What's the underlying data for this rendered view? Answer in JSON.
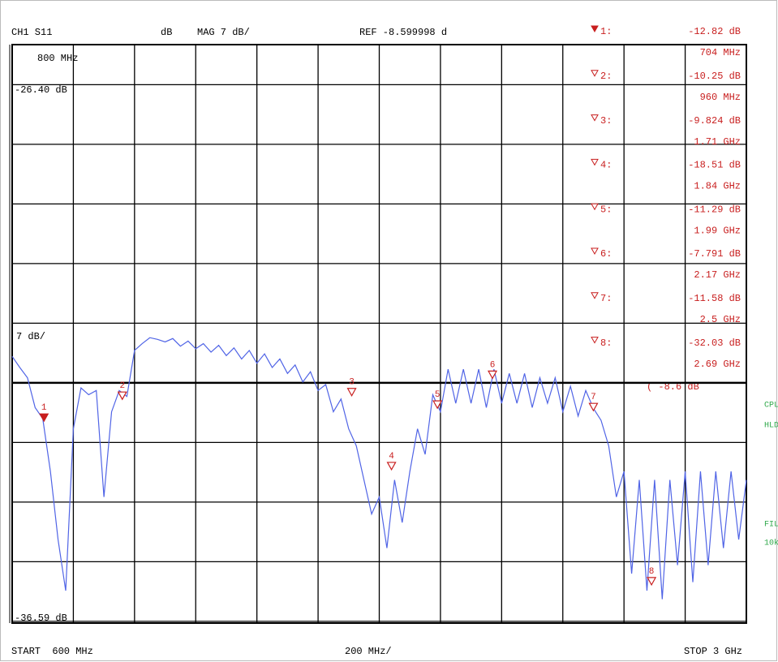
{
  "chart_data": {
    "type": "line",
    "header": {
      "channel": "CH1 S11",
      "format": "dB",
      "scale": "MAG 7 dB/",
      "ref": "REF -8.599998 d"
    },
    "annotations": {
      "top_freq": "800 MHz",
      "top_level": "-26.40 dB",
      "scale_label": "7 dB/",
      "bottom_level": "-36.59 dB",
      "ref_echo": "( -8.6 dB"
    },
    "footer": {
      "start": "START  600 MHz",
      "span": "200 MHz/",
      "stop": "STOP 3 GHz"
    },
    "side": [
      "CPL",
      "HLD",
      "FIL",
      "10k"
    ],
    "ref_value": -8.599998,
    "ydiv": 7,
    "xdiv": 200,
    "xlim": [
      600,
      3000
    ],
    "ylim": [
      -36.8,
      31.1
    ],
    "x": [
      600,
      625,
      650,
      675,
      700,
      725,
      750,
      775,
      800,
      825,
      850,
      875,
      900,
      925,
      950,
      975,
      1000,
      1025,
      1050,
      1075,
      1100,
      1125,
      1150,
      1175,
      1200,
      1225,
      1250,
      1275,
      1300,
      1325,
      1350,
      1375,
      1400,
      1425,
      1450,
      1475,
      1500,
      1525,
      1550,
      1575,
      1600,
      1625,
      1650,
      1675,
      1700,
      1725,
      1750,
      1775,
      1800,
      1825,
      1850,
      1875,
      1900,
      1925,
      1950,
      1975,
      2000,
      2025,
      2050,
      2075,
      2100,
      2125,
      2150,
      2175,
      2200,
      2225,
      2250,
      2275,
      2300,
      2325,
      2350,
      2375,
      2400,
      2425,
      2450,
      2475,
      2500,
      2525,
      2550,
      2575,
      2600,
      2625,
      2650,
      2675,
      2700,
      2725,
      2750,
      2775,
      2800,
      2825,
      2850,
      2875,
      2900,
      2925,
      2950,
      2975,
      3000
    ],
    "series": [
      {
        "color": "#5064e6",
        "values": [
          -5.5,
          -6.8,
          -8.0,
          -11.5,
          -12.8,
          -19,
          -27,
          -33,
          -14,
          -9.2,
          -10,
          -9.5,
          -22,
          -12,
          -9.5,
          -10.2,
          -4.8,
          -4.0,
          -3.3,
          -3.5,
          -3.8,
          -3.4,
          -4.3,
          -3.7,
          -4.6,
          -4.0,
          -5.0,
          -4.2,
          -5.4,
          -4.5,
          -5.8,
          -4.8,
          -6.3,
          -5.2,
          -6.8,
          -5.8,
          -7.5,
          -6.5,
          -8.5,
          -7.3,
          -9.5,
          -8.8,
          -12,
          -10.5,
          -14,
          -16,
          -20,
          -24,
          -22,
          -28,
          -20,
          -25,
          -19,
          -14,
          -17,
          -10,
          -12,
          -7,
          -11,
          -7,
          -11,
          -7,
          -11.5,
          -7,
          -11,
          -7.5,
          -11,
          -7.5,
          -11.5,
          -8,
          -11,
          -8,
          -12,
          -9,
          -12.5,
          -9.5,
          -11.6,
          -13,
          -16,
          -22,
          -19,
          -31,
          -20,
          -33,
          -20,
          -34,
          -20,
          -30,
          -19,
          -32,
          -19,
          -30,
          -19,
          -28,
          -19,
          -27,
          -20
        ]
      }
    ],
    "marker_color": "#c81e1e",
    "markers": [
      {
        "label": "1:",
        "plot_label": "1",
        "active": true,
        "value": -12.82,
        "value_label": "-12.82 dB",
        "freq": 704,
        "freq_label": "704 MHz"
      },
      {
        "label": "2:",
        "plot_label": "2",
        "active": false,
        "value": -10.25,
        "value_label": "-10.25 dB",
        "freq": 960,
        "freq_label": "960 MHz"
      },
      {
        "label": "3:",
        "plot_label": "3",
        "active": false,
        "value": -9.824,
        "value_label": "-9.824 dB",
        "freq": 1710,
        "freq_label": "1.71 GHz"
      },
      {
        "label": "4:",
        "plot_label": "4",
        "active": false,
        "value": -18.51,
        "value_label": "-18.51 dB",
        "freq": 1840,
        "freq_label": "1.84 GHz"
      },
      {
        "label": "5:",
        "plot_label": "5",
        "active": false,
        "value": -11.29,
        "value_label": "-11.29 dB",
        "freq": 1990,
        "freq_label": "1.99 GHz"
      },
      {
        "label": "6:",
        "plot_label": "6",
        "active": false,
        "value": -7.791,
        "value_label": "-7.791 dB",
        "freq": 2170,
        "freq_label": "2.17 GHz"
      },
      {
        "label": "7:",
        "plot_label": "7",
        "active": false,
        "value": -11.58,
        "value_label": "-11.58 dB",
        "freq": 2500,
        "freq_label": "2.5 GHz"
      },
      {
        "label": "8:",
        "plot_label": "8",
        "active": false,
        "value": -32.03,
        "value_label": "-32.03 dB",
        "freq": 2690,
        "freq_label": "2.69 GHz"
      }
    ]
  }
}
